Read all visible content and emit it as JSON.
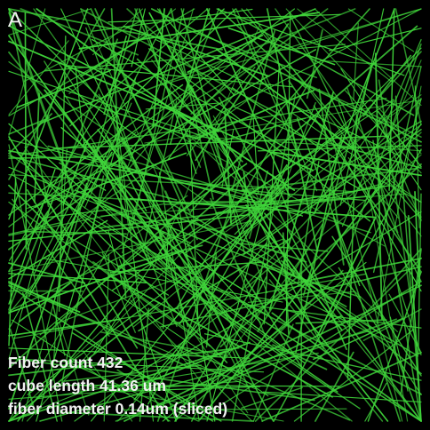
{
  "panel": {
    "label": "A",
    "background_color": "#000000",
    "fiber_color": "#3fd43a",
    "fiber_count_value": 432
  },
  "caption": {
    "line1": "Fiber count 432",
    "line2": "cube length 41.36 um",
    "line3": "fiber diameter 0.14um (sliced)",
    "text_color": "#f2f2f2"
  }
}
